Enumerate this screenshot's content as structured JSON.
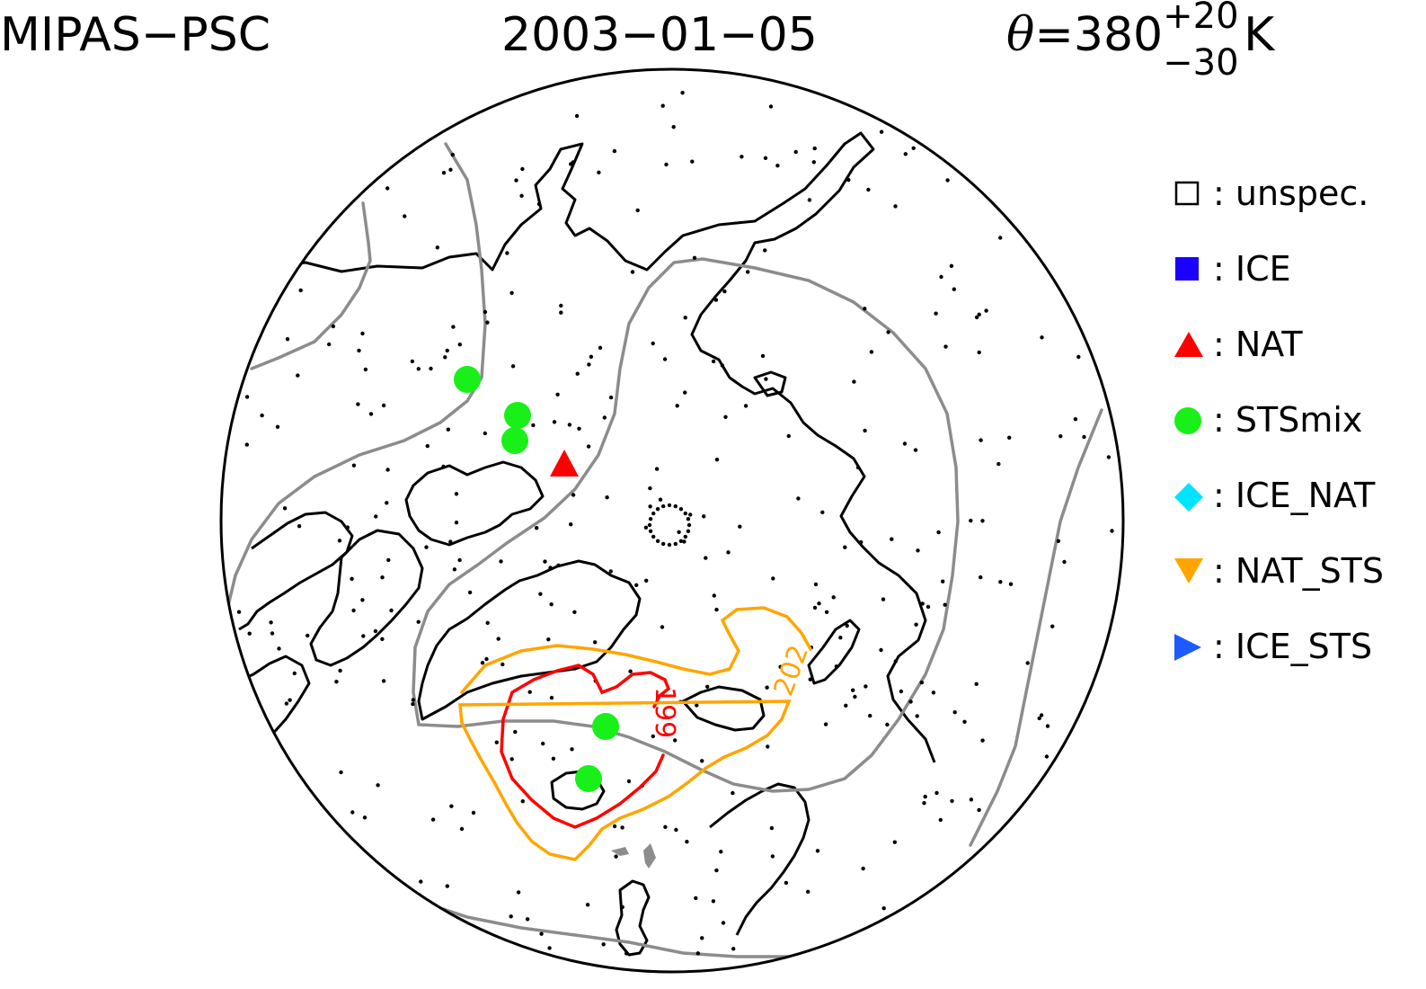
{
  "header": {
    "instrument": "MIPAS−PSC",
    "date": "2003−01−05",
    "theta_symbol": "θ",
    "theta_value": "=380",
    "theta_plus": "+20",
    "theta_minus": "−30",
    "theta_unit": "K"
  },
  "legend": [
    {
      "label": ": unspec.",
      "symbol": "open-square",
      "color": "#000000"
    },
    {
      "label": ": ICE",
      "symbol": "filled-square",
      "color": "#1a00ff"
    },
    {
      "label": ": NAT",
      "symbol": "triangle-up",
      "color": "#ff0000"
    },
    {
      "label": ": STSmix",
      "symbol": "circle",
      "color": "#19f019"
    },
    {
      "label": ": ICE_NAT",
      "symbol": "diamond",
      "color": "#00e5ff"
    },
    {
      "label": ": NAT_STS",
      "symbol": "triangle-down",
      "color": "#ffa500"
    },
    {
      "label": ": ICE_STS",
      "symbol": "triangle-right",
      "color": "#1e5bff"
    }
  ],
  "contours": [
    {
      "label": "199",
      "color": "#ff0000"
    },
    {
      "label": "202",
      "color": "#ffa500"
    }
  ],
  "colors": {
    "coast": "#000000",
    "gray_contour": "#8c8c8c",
    "sts_point": "#19f019",
    "nat_point": "#ff0000"
  }
}
